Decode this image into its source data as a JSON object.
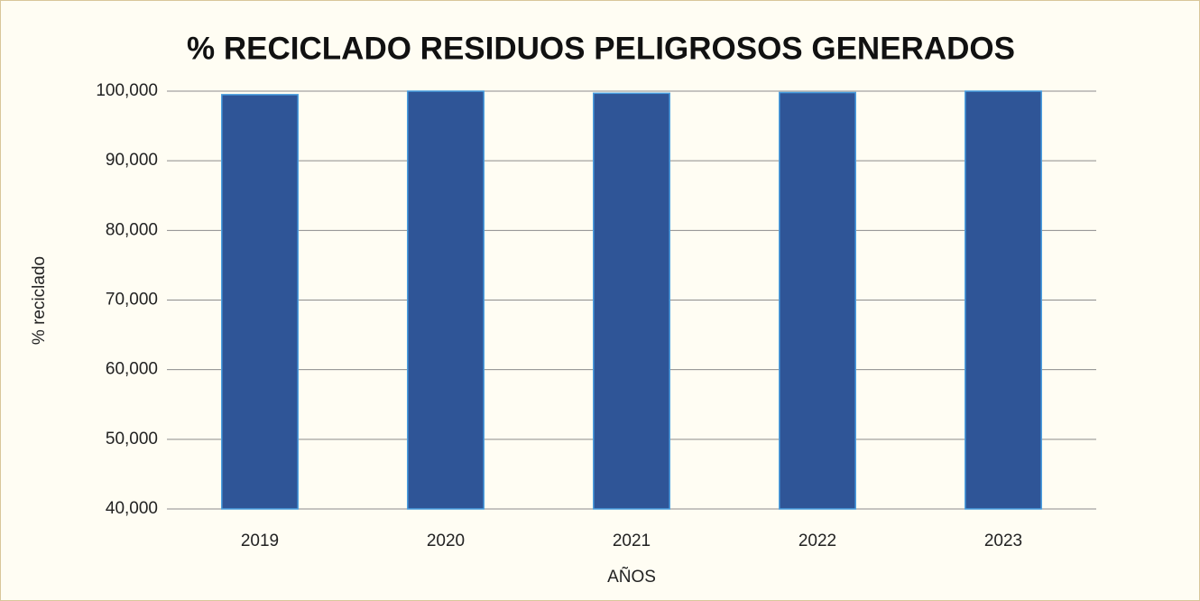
{
  "chart_data": {
    "type": "bar",
    "title": "% RECICLADO RESIDUOS PELIGROSOS GENERADOS",
    "x_label": "AÑOS",
    "y_label": "% reciclado",
    "categories": [
      "2019",
      "2020",
      "2021",
      "2022",
      "2023"
    ],
    "values": [
      99.5,
      100,
      99.7,
      99.8,
      100
    ],
    "color": "#2f5597",
    "ylim": [
      40,
      100
    ],
    "yticks": [
      {
        "value": 40,
        "label": "40,000"
      },
      {
        "value": 50,
        "label": "50,000"
      },
      {
        "value": 60,
        "label": "60,000"
      },
      {
        "value": 70,
        "label": "70,000"
      },
      {
        "value": 80,
        "label": "80,000"
      },
      {
        "value": 90,
        "label": "90,000"
      },
      {
        "value": 100,
        "label": "100,000"
      }
    ],
    "grid": true
  }
}
